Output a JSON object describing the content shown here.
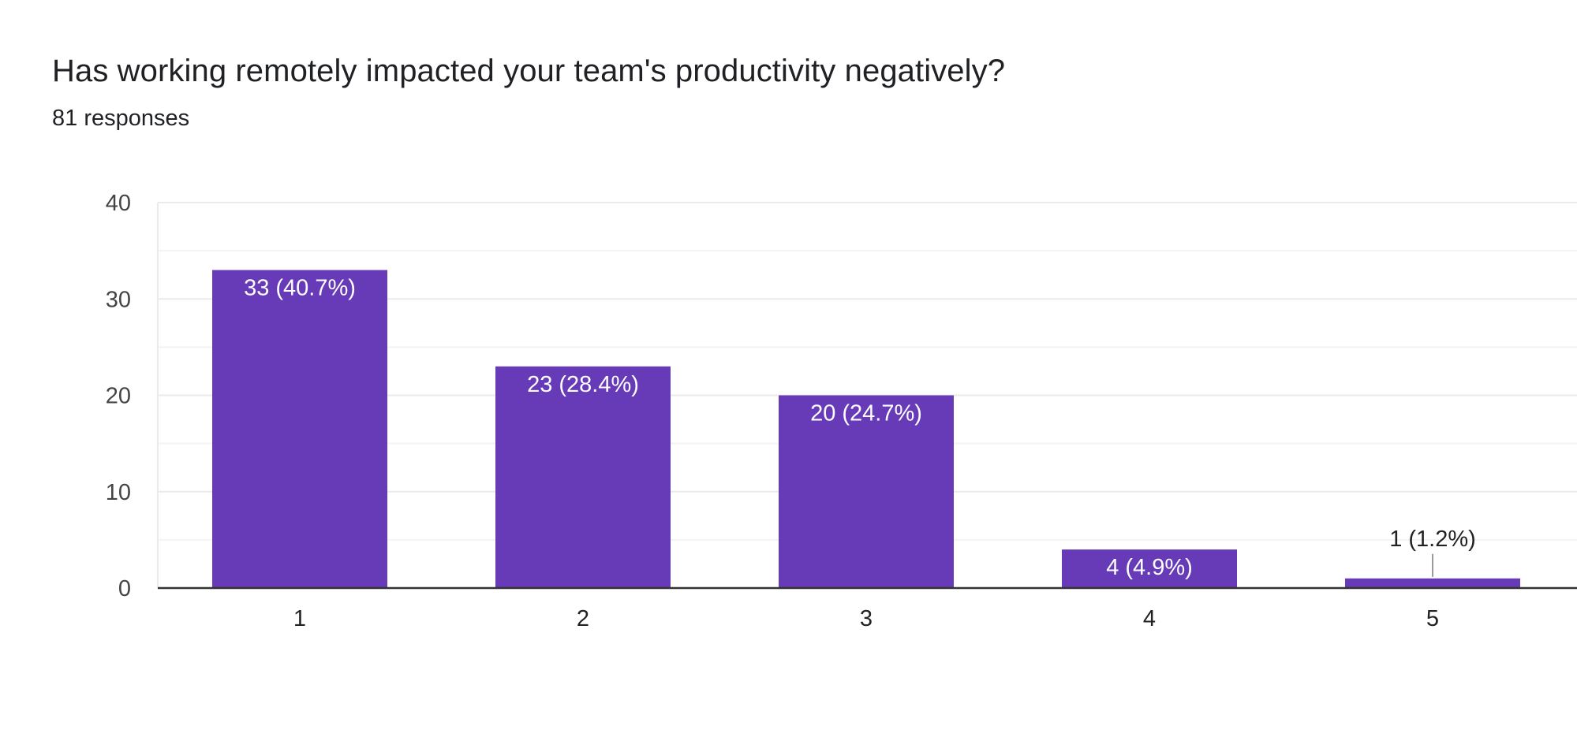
{
  "header": {
    "question": "Has working remotely impacted your team's productivity negatively?",
    "responses": "81 responses"
  },
  "colors": {
    "bar": "#673ab7",
    "grid": "#ebebeb",
    "axis": "#333333",
    "label_inside": "#ffffff",
    "label_outside": "#222222"
  },
  "chart_data": {
    "type": "bar",
    "title": "Has working remotely impacted your team's productivity negatively?",
    "subtitle": "81 responses",
    "categories": [
      "1",
      "2",
      "3",
      "4",
      "5"
    ],
    "values": [
      33,
      23,
      20,
      4,
      1
    ],
    "data_labels": [
      "33 (40.7%)",
      "23 (28.4%)",
      "20 (24.7%)",
      "4 (4.9%)",
      "1 (1.2%)"
    ],
    "xlabel": "",
    "ylabel": "",
    "ylim": [
      0,
      40
    ],
    "yticks": [
      0,
      10,
      20,
      30,
      40
    ],
    "grid": true,
    "legend": "none"
  }
}
